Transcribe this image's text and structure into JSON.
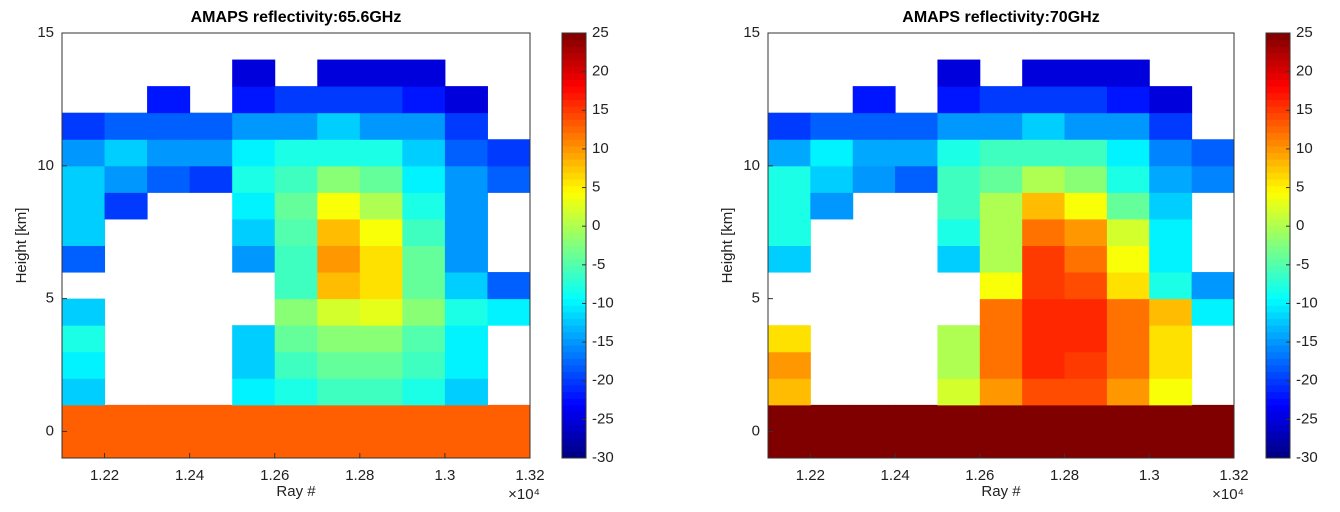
{
  "chart_data": [
    {
      "type": "heatmap",
      "title": "AMAPS reflectivity:65.6GHz",
      "x_label": "Ray #",
      "y_label": "Height [km]",
      "x_multiplier": "×10⁴",
      "colormap": "jet",
      "grid": false,
      "xlim": [
        1.21,
        1.32
      ],
      "xticks": [
        1.22,
        1.24,
        1.26,
        1.28,
        1.3,
        1.32
      ],
      "ylim": [
        -1,
        15
      ],
      "yticks": [
        0,
        5,
        10,
        15
      ],
      "clim": [
        -30,
        25
      ],
      "cticks": [
        -30,
        -25,
        -20,
        -15,
        -10,
        -5,
        0,
        5,
        10,
        15,
        20,
        25
      ],
      "xbins": [
        1.21,
        1.22,
        1.23,
        1.24,
        1.25,
        1.26,
        1.27,
        1.28,
        1.29,
        1.3,
        1.31,
        1.32
      ],
      "ybins": [
        -1,
        0,
        1,
        2,
        3,
        4,
        5,
        6,
        7,
        8,
        9,
        10,
        11,
        12,
        13,
        14,
        15
      ],
      "z": [
        [
          13,
          13,
          13,
          13,
          13,
          13,
          13,
          13,
          13,
          13,
          13
        ],
        [
          13,
          13,
          13,
          13,
          13,
          13,
          13,
          13,
          13,
          13,
          13
        ],
        [
          -12,
          null,
          null,
          null,
          -10,
          -8,
          -6,
          -6,
          -8,
          -12,
          null
        ],
        [
          -10,
          null,
          null,
          null,
          -12,
          -6,
          -4,
          -4,
          -6,
          -10,
          null
        ],
        [
          -8,
          null,
          null,
          null,
          -12,
          -4,
          -2,
          -2,
          -5,
          -10,
          null
        ],
        [
          -12,
          null,
          null,
          null,
          null,
          -2,
          2,
          3,
          -2,
          -8,
          -10
        ],
        [
          null,
          null,
          null,
          null,
          null,
          -6,
          8,
          6,
          -4,
          -12,
          -18
        ],
        [
          -18,
          null,
          null,
          null,
          -15,
          -6,
          10,
          6,
          -4,
          -15,
          null
        ],
        [
          -12,
          null,
          null,
          null,
          -12,
          -5,
          8,
          4,
          -6,
          -15,
          null
        ],
        [
          -12,
          -20,
          null,
          null,
          -10,
          -4,
          4,
          0,
          -8,
          -15,
          null
        ],
        [
          -12,
          -15,
          -18,
          -20,
          -8,
          -6,
          -2,
          -4,
          -10,
          -15,
          -18
        ],
        [
          -15,
          -12,
          -15,
          -15,
          -10,
          -8,
          -8,
          -8,
          -12,
          -18,
          -20
        ],
        [
          -20,
          -18,
          -18,
          -18,
          -15,
          -15,
          -12,
          -15,
          -15,
          -20,
          null
        ],
        [
          null,
          null,
          -22,
          null,
          -22,
          -20,
          -20,
          -20,
          -22,
          -25,
          null
        ],
        [
          null,
          null,
          null,
          null,
          -25,
          null,
          -25,
          -25,
          -25,
          null,
          null
        ],
        [
          null,
          null,
          null,
          null,
          null,
          null,
          null,
          null,
          null,
          null,
          null
        ]
      ]
    },
    {
      "type": "heatmap",
      "title": "AMAPS reflectivity:70GHz",
      "x_label": "Ray #",
      "y_label": "Height [km]",
      "x_multiplier": "×10⁴",
      "colormap": "jet",
      "grid": false,
      "xlim": [
        1.21,
        1.32
      ],
      "xticks": [
        1.22,
        1.24,
        1.26,
        1.28,
        1.3,
        1.32
      ],
      "ylim": [
        -1,
        15
      ],
      "yticks": [
        0,
        5,
        10,
        15
      ],
      "clim": [
        -30,
        25
      ],
      "cticks": [
        -30,
        -25,
        -20,
        -15,
        -10,
        -5,
        0,
        5,
        10,
        15,
        20,
        25
      ],
      "xbins": [
        1.21,
        1.22,
        1.23,
        1.24,
        1.25,
        1.26,
        1.27,
        1.28,
        1.29,
        1.3,
        1.31,
        1.32
      ],
      "ybins": [
        -1,
        0,
        1,
        2,
        3,
        4,
        5,
        6,
        7,
        8,
        9,
        10,
        11,
        12,
        13,
        14,
        15
      ],
      "z": [
        [
          25,
          25,
          25,
          25,
          25,
          25,
          25,
          25,
          25,
          25,
          25
        ],
        [
          25,
          25,
          25,
          25,
          25,
          25,
          25,
          25,
          25,
          25,
          25
        ],
        [
          8,
          null,
          null,
          null,
          2,
          10,
          14,
          14,
          10,
          4,
          null
        ],
        [
          10,
          null,
          null,
          null,
          0,
          12,
          16,
          15,
          12,
          6,
          null
        ],
        [
          6,
          null,
          null,
          null,
          0,
          12,
          16,
          16,
          12,
          6,
          null
        ],
        [
          null,
          null,
          null,
          null,
          null,
          12,
          16,
          16,
          12,
          8,
          -10
        ],
        [
          null,
          null,
          null,
          null,
          null,
          4,
          15,
          14,
          6,
          -8,
          -15
        ],
        [
          -12,
          null,
          null,
          null,
          -12,
          0,
          15,
          12,
          4,
          -10,
          null
        ],
        [
          -8,
          null,
          null,
          null,
          -8,
          0,
          12,
          10,
          2,
          -10,
          null
        ],
        [
          -8,
          -15,
          null,
          null,
          -6,
          0,
          8,
          4,
          -4,
          -12,
          null
        ],
        [
          -8,
          -12,
          -15,
          -18,
          -6,
          -4,
          0,
          -2,
          -8,
          -14,
          -16
        ],
        [
          -14,
          -10,
          -14,
          -14,
          -8,
          -6,
          -6,
          -6,
          -10,
          -16,
          -18
        ],
        [
          -20,
          -18,
          -18,
          -18,
          -15,
          -15,
          -12,
          -15,
          -15,
          -20,
          null
        ],
        [
          null,
          null,
          -22,
          null,
          -22,
          -20,
          -20,
          -20,
          -22,
          -25,
          null
        ],
        [
          null,
          null,
          null,
          null,
          -25,
          null,
          -25,
          -25,
          -25,
          null,
          null
        ],
        [
          null,
          null,
          null,
          null,
          null,
          null,
          null,
          null,
          null,
          null,
          null
        ]
      ]
    }
  ]
}
